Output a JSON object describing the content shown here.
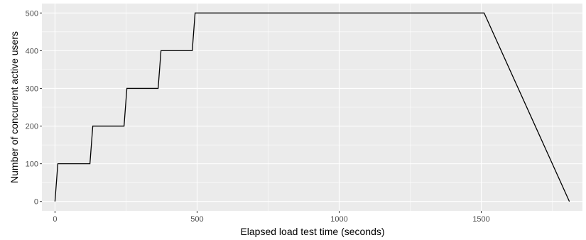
{
  "chart_data": {
    "type": "line",
    "xlabel": "Elapsed load test time (seconds)",
    "ylabel": "Number of concurrent active users",
    "xlim": [
      -46,
      1856
    ],
    "ylim": [
      -25,
      525
    ],
    "x_ticks": [
      0,
      500,
      1000,
      1500
    ],
    "x_tick_labels": [
      "0",
      "500",
      "1000",
      "1500"
    ],
    "y_ticks": [
      0,
      100,
      200,
      300,
      400,
      500
    ],
    "y_tick_labels": [
      "0",
      "100",
      "200",
      "300",
      "400",
      "500"
    ],
    "grid": true,
    "panel_background": "#ebebeb",
    "grid_color": "#ffffff",
    "line_color": "#000000",
    "series": [
      {
        "x": [
          0,
          10,
          123,
          133,
          243,
          253,
          363,
          373,
          483,
          493,
          1510,
          1810
        ],
        "y": [
          0,
          100,
          100,
          200,
          200,
          300,
          300,
          400,
          400,
          500,
          500,
          0
        ]
      }
    ]
  }
}
